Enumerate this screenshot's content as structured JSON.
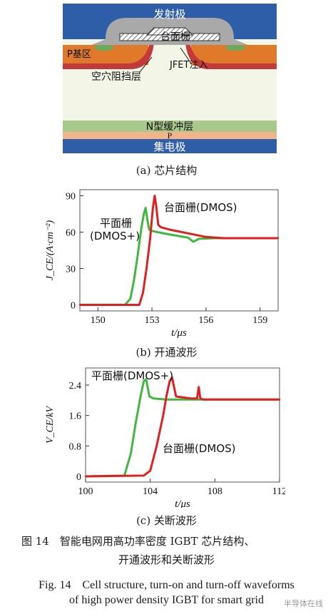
{
  "structure": {
    "caption": "(a) 芯片结构",
    "labels": {
      "emitter": "发射极",
      "gate": "台面栅",
      "p_base": "P基区",
      "jfet": "JFET注入",
      "hole_barrier": "空穴阻挡层",
      "n_buffer": "N型缓冲层",
      "p_layer": "P",
      "collector": "集电极"
    },
    "colors": {
      "emitter": "#2f5ea8",
      "collector": "#2f5ea8",
      "oxide": "#a9a9a9",
      "p_base": "#e07a2a",
      "hole_barrier": "#c23a3a",
      "drift": "#f3f6e6",
      "n_buffer": "#a8c98a",
      "p_layer": "#f2b48a",
      "contact_green": "#6aaa5a"
    }
  },
  "figure_caption_cn_line1": "图 14　智能电网用高功率密度 IGBT 芯片结构、",
  "figure_caption_cn_line2": "开通波形和关断波形",
  "figure_caption_en_line1": "Fig. 14　Cell structure, turn-on and turn-off waveforms",
  "figure_caption_en_line2": "of high power density IGBT for smart grid",
  "watermark": "半导体在线",
  "chart_data": [
    {
      "type": "line",
      "caption": "(b) 开通波形",
      "xlabel": "t/μs",
      "ylabel": "J_CE/(A·cm⁻²)",
      "xlim": [
        149,
        160
      ],
      "ylim": [
        -5,
        95
      ],
      "xticks": [
        150,
        153,
        156,
        159
      ],
      "yticks": [
        0,
        30,
        60,
        90
      ],
      "annotations": [
        "台面栅(DMOS)",
        "平面栅",
        "(DMOS+)"
      ],
      "series": [
        {
          "name": "平面栅(DMOS+)",
          "color": "#3fb83f",
          "x": [
            149,
            151.5,
            151.8,
            152.0,
            152.2,
            152.4,
            152.55,
            152.65,
            152.75,
            152.85,
            153.0,
            153.3,
            154,
            155,
            155.3,
            155.6,
            156.5,
            157.5,
            158.5,
            160
          ],
          "y": [
            0,
            0,
            5,
            20,
            40,
            62,
            75,
            80,
            70,
            62,
            61,
            60,
            58,
            55.5,
            52,
            54.5,
            55,
            55,
            55,
            55
          ]
        },
        {
          "name": "台面栅(DMOS)",
          "color": "#e02020",
          "x": [
            149,
            152.3,
            152.5,
            152.7,
            152.9,
            153.05,
            153.15,
            153.25,
            153.35,
            153.5,
            154,
            155,
            156,
            157,
            158,
            160
          ],
          "y": [
            0,
            0,
            10,
            30,
            55,
            80,
            90,
            80,
            66,
            64,
            62,
            59,
            56,
            55,
            55,
            55
          ]
        }
      ]
    },
    {
      "type": "line",
      "caption": "(c) 关断波形",
      "xlabel": "t/μs",
      "ylabel": "V_CE/kV",
      "xlim": [
        100,
        112
      ],
      "ylim": [
        -0.15,
        2.85
      ],
      "xticks": [
        100,
        104,
        108,
        112
      ],
      "yticks": [
        0,
        0.8,
        1.6,
        2.4
      ],
      "annotations": [
        "平面栅(DMOS+)",
        "台面栅(DMOS)"
      ],
      "series": [
        {
          "name": "平面栅(DMOS+)",
          "color": "#3fb83f",
          "x": [
            100,
            102.4,
            102.8,
            103.1,
            103.4,
            103.6,
            103.75,
            103.95,
            104.2,
            105,
            106,
            108,
            112
          ],
          "y": [
            0,
            0.02,
            0.6,
            1.4,
            2.1,
            2.5,
            2.55,
            2.1,
            2.05,
            2.02,
            2.02,
            2.02,
            2.02
          ]
        },
        {
          "name": "台面栅(DMOS)",
          "color": "#e02020",
          "x": [
            100,
            103.6,
            104.0,
            104.4,
            104.8,
            105.0,
            105.2,
            105.35,
            105.6,
            106.5,
            106.9,
            107.0,
            107.1,
            107.3,
            108.5,
            112
          ],
          "y": [
            0,
            0.02,
            0.15,
            0.8,
            1.6,
            2.1,
            2.5,
            2.6,
            2.1,
            2.05,
            2.05,
            2.35,
            2.05,
            2.02,
            2.02,
            2.02
          ]
        }
      ]
    }
  ]
}
